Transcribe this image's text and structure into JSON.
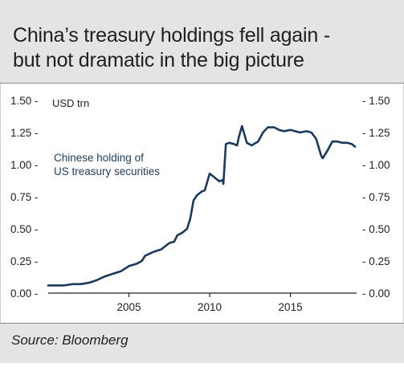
{
  "header": {
    "title_line1": "China’s treasury holdings fell again -",
    "title_line2": "but not dramatic in the big picture"
  },
  "footer": {
    "source": "Source: Bloomberg"
  },
  "colors": {
    "line": "#163a63",
    "panel": "#e4e4e6",
    "axis": "#222222"
  },
  "chart_data": {
    "type": "line",
    "title": "China’s treasury holdings fell again - but not dramatic in the big picture",
    "unit_label": "USD trn",
    "annotation": [
      "Chinese holding of",
      "US treasury securities"
    ],
    "ylim": [
      0,
      1.5
    ],
    "yticks": [
      0.0,
      0.25,
      0.5,
      0.75,
      1.0,
      1.25,
      1.5
    ],
    "ytick_labels": [
      "0.00",
      "0.25",
      "0.50",
      "0.75",
      "1.00",
      "1.25",
      "1.50"
    ],
    "ytick_labels_right": [
      "- 0.00",
      "- 0.25",
      "- 0.50",
      "- 0.75",
      "- 1.00",
      "- 1.25",
      "- 1.50"
    ],
    "ytick_labels_left": [
      "0.00 -",
      "0.25 -",
      "0.50 -",
      "0.75 -",
      "1.00 -",
      "1.25 -",
      "1.50 -"
    ],
    "xlim": [
      2000.0,
      2019.1
    ],
    "xticks": [
      2005,
      2010,
      2015
    ],
    "xtick_labels": [
      "2005",
      "2010",
      "2015"
    ],
    "grid": false,
    "series": [
      {
        "name": "Chinese holding of US treasury securities",
        "color": "#163a63",
        "x": [
          2000.0,
          2000.5,
          2001.0,
          2001.5,
          2002.0,
          2002.5,
          2003.0,
          2003.5,
          2004.0,
          2004.5,
          2005.0,
          2005.5,
          2005.8,
          2006.0,
          2006.5,
          2007.0,
          2007.5,
          2007.8,
          2008.0,
          2008.3,
          2008.6,
          2008.8,
          2009.0,
          2009.2,
          2009.5,
          2009.7,
          2010.0,
          2010.2,
          2010.4,
          2010.6,
          2010.8,
          2010.85,
          2011.0,
          2011.2,
          2011.5,
          2011.7,
          2011.8,
          2012.0,
          2012.3,
          2012.6,
          2013.0,
          2013.3,
          2013.6,
          2014.0,
          2014.3,
          2014.6,
          2015.0,
          2015.3,
          2015.6,
          2016.0,
          2016.3,
          2016.6,
          2016.9,
          2017.0,
          2017.3,
          2017.6,
          2017.9,
          2018.2,
          2018.5,
          2018.8,
          2019.0
        ],
        "y": [
          0.06,
          0.06,
          0.06,
          0.07,
          0.07,
          0.08,
          0.1,
          0.13,
          0.15,
          0.17,
          0.21,
          0.23,
          0.25,
          0.29,
          0.32,
          0.34,
          0.39,
          0.4,
          0.45,
          0.47,
          0.5,
          0.58,
          0.72,
          0.76,
          0.79,
          0.8,
          0.93,
          0.91,
          0.89,
          0.87,
          0.88,
          0.85,
          1.16,
          1.17,
          1.16,
          1.15,
          1.21,
          1.3,
          1.17,
          1.15,
          1.18,
          1.25,
          1.29,
          1.29,
          1.27,
          1.26,
          1.27,
          1.26,
          1.25,
          1.26,
          1.25,
          1.2,
          1.07,
          1.05,
          1.11,
          1.18,
          1.18,
          1.17,
          1.17,
          1.16,
          1.14
        ]
      }
    ]
  }
}
